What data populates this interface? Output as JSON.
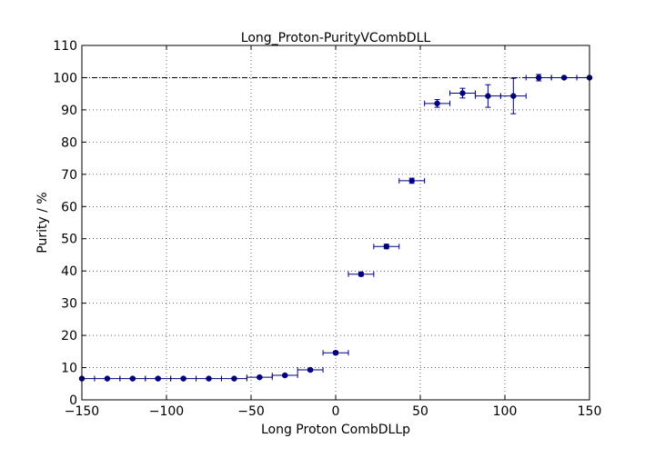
{
  "chart_data": {
    "type": "scatter",
    "title": "Long_Proton-PurityVCombDLL",
    "xlabel": "Long Proton CombDLLp",
    "ylabel": "Purity / %",
    "xlim": [
      -150,
      150
    ],
    "ylim": [
      0,
      110
    ],
    "xticks": [
      -150,
      -100,
      -50,
      0,
      50,
      100,
      150
    ],
    "yticks": [
      0,
      10,
      20,
      30,
      40,
      50,
      60,
      70,
      80,
      90,
      100,
      110
    ],
    "grid": true,
    "reference_line": 100,
    "marker_color": "#00007f",
    "points": [
      {
        "x": -150,
        "y": 6.6,
        "xerr": 7.5,
        "yerr": 0.3
      },
      {
        "x": -135,
        "y": 6.6,
        "xerr": 7.5,
        "yerr": 0.3
      },
      {
        "x": -120,
        "y": 6.6,
        "xerr": 7.5,
        "yerr": 0.3
      },
      {
        "x": -105,
        "y": 6.6,
        "xerr": 7.5,
        "yerr": 0.3
      },
      {
        "x": -90,
        "y": 6.6,
        "xerr": 7.5,
        "yerr": 0.3
      },
      {
        "x": -75,
        "y": 6.6,
        "xerr": 7.5,
        "yerr": 0.3
      },
      {
        "x": -60,
        "y": 6.6,
        "xerr": 7.5,
        "yerr": 0.3
      },
      {
        "x": -45,
        "y": 7.0,
        "xerr": 7.5,
        "yerr": 0.3
      },
      {
        "x": -30,
        "y": 7.6,
        "xerr": 7.5,
        "yerr": 0.3
      },
      {
        "x": -15,
        "y": 9.3,
        "xerr": 7.5,
        "yerr": 0.4
      },
      {
        "x": 0,
        "y": 14.6,
        "xerr": 7.5,
        "yerr": 0.5
      },
      {
        "x": 15,
        "y": 39.0,
        "xerr": 7.5,
        "yerr": 0.6
      },
      {
        "x": 30,
        "y": 47.6,
        "xerr": 7.5,
        "yerr": 0.7
      },
      {
        "x": 45,
        "y": 68.0,
        "xerr": 7.5,
        "yerr": 0.8
      },
      {
        "x": 60,
        "y": 92.0,
        "xerr": 7.5,
        "yerr": 1.2
      },
      {
        "x": 75,
        "y": 95.2,
        "xerr": 7.5,
        "yerr": 1.5
      },
      {
        "x": 90,
        "y": 94.3,
        "xerr": 7.5,
        "yerr": 3.5
      },
      {
        "x": 105,
        "y": 94.3,
        "xerr": 7.5,
        "yerr": 5.5
      },
      {
        "x": 120,
        "y": 100,
        "xerr": 7.5,
        "yerr": 1.0
      },
      {
        "x": 135,
        "y": 100,
        "xerr": 7.5,
        "yerr": 0.3
      },
      {
        "x": 150,
        "y": 100,
        "xerr": 7.5,
        "yerr": 0.3
      }
    ]
  }
}
